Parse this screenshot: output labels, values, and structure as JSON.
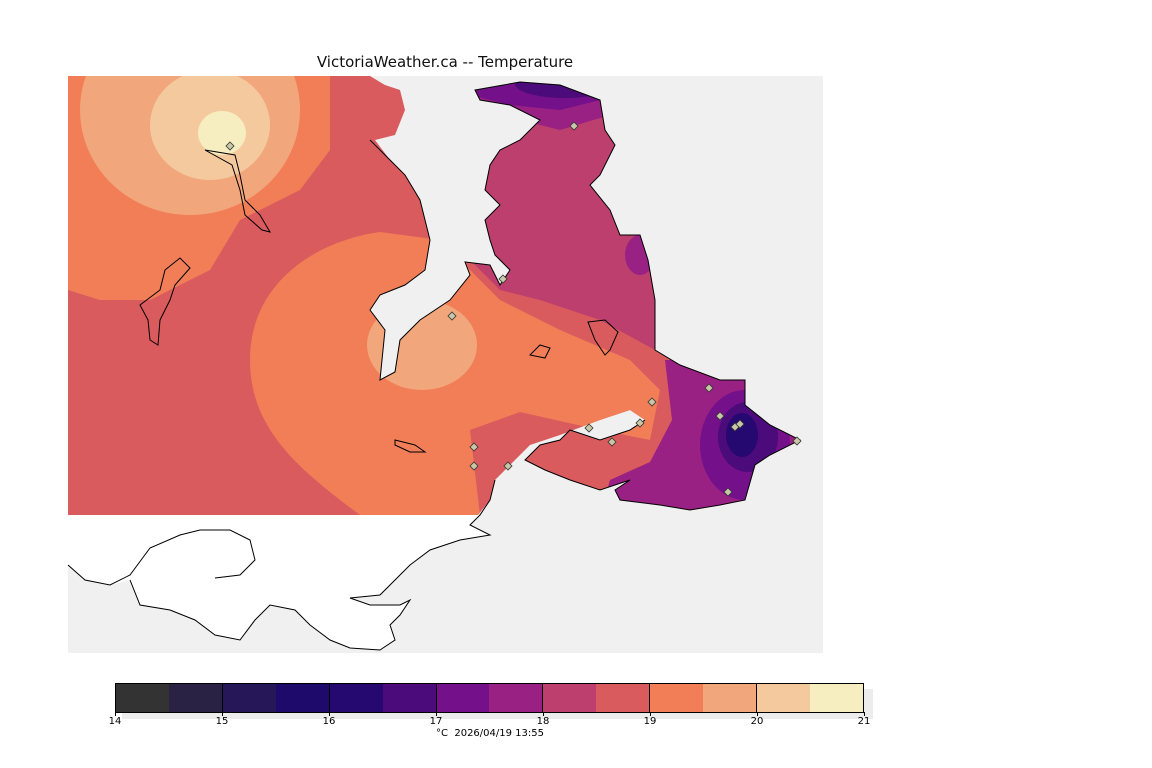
{
  "title": "VictoriaWeather.ca -- Temperature",
  "legend": {
    "unit": "°C",
    "timestamp": "2026/04/19 13:55",
    "ticks": [
      "14",
      "15",
      "16",
      "17",
      "18",
      "19",
      "20",
      "21"
    ],
    "colors": [
      "#333333",
      "#2a2244",
      "#261858",
      "#1e0a6b",
      "#250870",
      "#4c0b7a",
      "#74108a",
      "#9a2184",
      "#bc3f6e",
      "#da5b5d",
      "#f17e57",
      "#f2a67b",
      "#f5c99e",
      "#f6eec0"
    ]
  },
  "map": {
    "water_color": "#f0f0f0",
    "outside_color": "#ffffff"
  }
}
